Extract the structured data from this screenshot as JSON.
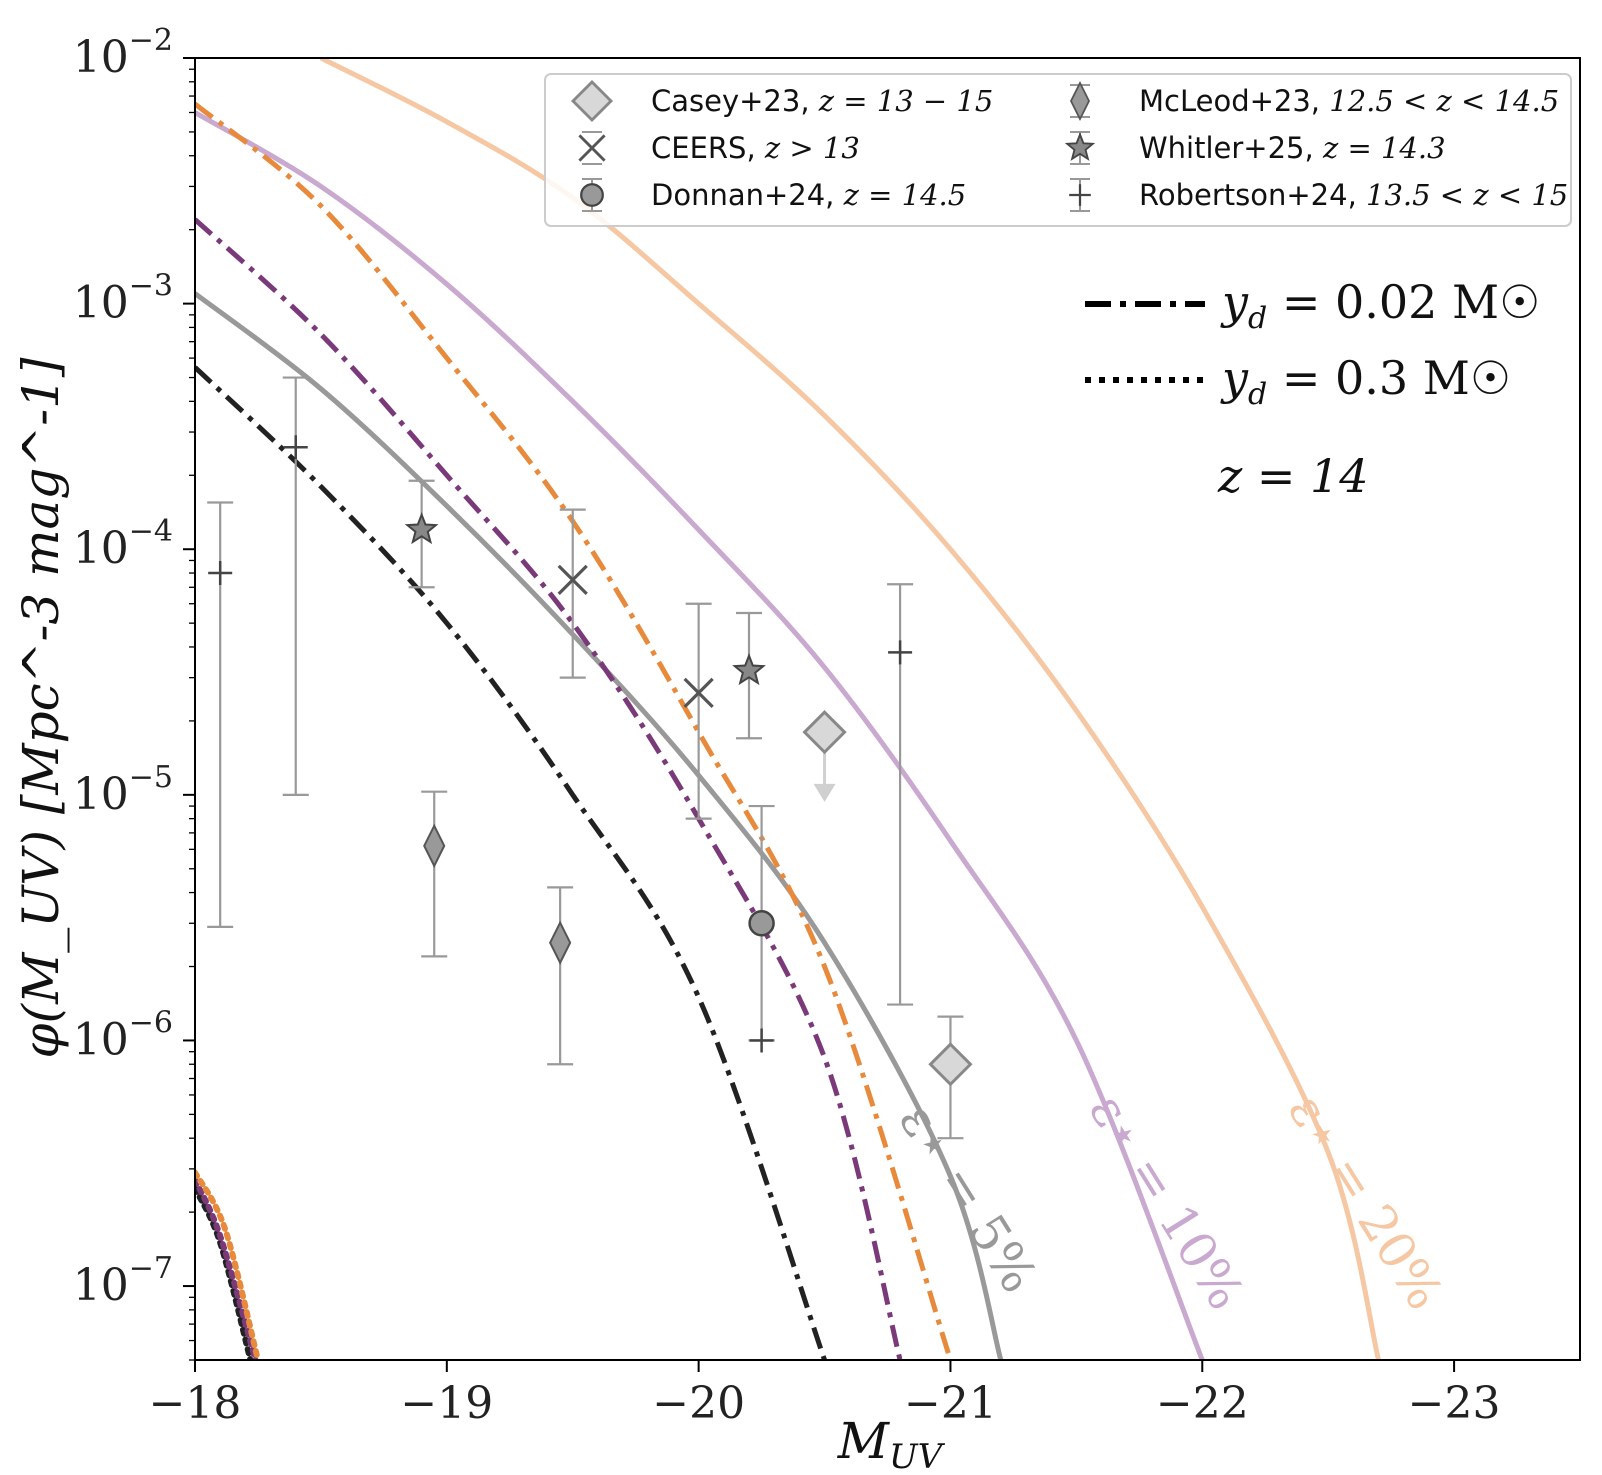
{
  "chart_data": {
    "type": "line",
    "xlabel": "M_UV",
    "ylabel": "φ(M_UV) [Mpc^-3 mag^-1]",
    "xlim": [
      -18,
      -23.5
    ],
    "ylim": [
      5e-08,
      0.01
    ],
    "yscale": "log",
    "x_ticks": [
      -18,
      -19,
      -20,
      -21,
      -22,
      -23
    ],
    "x_tick_labels": [
      "−18",
      "−19",
      "−20",
      "−21",
      "−22",
      "−23"
    ],
    "y_ticks": [
      1e-07,
      1e-06,
      1e-05,
      0.0001,
      0.001,
      0.01
    ],
    "y_tick_base": "10",
    "y_tick_exponents": [
      "−7",
      "−6",
      "−5",
      "−4",
      "−3",
      "−2"
    ],
    "grid": false,
    "legend_position": "top",
    "colors": {
      "eps5": "#999999",
      "eps10": "#c9a9cf",
      "eps20": "#f5c7a3",
      "yd002_black": "#222222",
      "yd002_purple": "#7a3a7a",
      "yd002_orange": "#e88a3c",
      "data_fill": "#888888",
      "data_edge": "#444444",
      "errorbar": "#999999"
    },
    "series": [
      {
        "name": "ε⋆ = 5%",
        "style": "solid",
        "color": "#999999",
        "x": [
          -18,
          -18.5,
          -19,
          -19.5,
          -20,
          -20.5,
          -21,
          -21.2
        ],
        "y": [
          0.0011,
          0.00045,
          0.00015,
          4.5e-05,
          1.2e-05,
          2.5e-06,
          2.8e-07,
          5e-08
        ]
      },
      {
        "name": "ε⋆ = 10%",
        "style": "solid",
        "color": "#c9a9cf",
        "x": [
          -18,
          -18.5,
          -19,
          -19.5,
          -20,
          -20.5,
          -21,
          -21.5,
          -22
        ],
        "y": [
          0.006,
          0.003,
          0.0012,
          0.0004,
          0.00012,
          3.3e-05,
          6.5e-06,
          1e-06,
          5e-08
        ]
      },
      {
        "name": "ε⋆ = 20%",
        "style": "solid",
        "color": "#f5c7a3",
        "x": [
          -18.5,
          -19,
          -19.5,
          -20,
          -20.5,
          -21,
          -21.5,
          -22,
          -22.5,
          -22.7
        ],
        "y": [
          0.01,
          0.0055,
          0.0027,
          0.001,
          0.00035,
          0.0001,
          2.2e-05,
          3.5e-06,
          3.5e-07,
          5e-08
        ]
      },
      {
        "name": "y_d = 0.02 M☉ (ε⋆ = 5%)",
        "style": "dashdot",
        "color": "#222222",
        "x": [
          -18,
          -18.5,
          -19,
          -19.5,
          -20,
          -20.5
        ],
        "y": [
          0.00055,
          0.00018,
          5e-05,
          1e-05,
          1.5e-06,
          5e-08
        ]
      },
      {
        "name": "y_d = 0.02 M☉ (ε⋆ = 10%)",
        "style": "dashdot",
        "color": "#7a3a7a",
        "x": [
          -18,
          -18.5,
          -19,
          -19.5,
          -20,
          -20.5,
          -20.8
        ],
        "y": [
          0.0022,
          0.00075,
          0.0002,
          5e-05,
          8e-06,
          8.5e-07,
          5e-08
        ]
      },
      {
        "name": "y_d = 0.02 M☉ (ε⋆ = 20%)",
        "style": "dashdot",
        "color": "#e88a3c",
        "x": [
          -18,
          -18.5,
          -19,
          -19.5,
          -20,
          -20.5,
          -21
        ],
        "y": [
          0.0065,
          0.0025,
          0.0006,
          0.00013,
          1.8e-05,
          2e-06,
          5e-08
        ]
      },
      {
        "name": "y_d = 0.3 M☉ (ε⋆ = 5%)",
        "style": "dotted",
        "color": "#222222",
        "x": [
          -18,
          -18.1,
          -18.22
        ],
        "y": [
          2.5e-07,
          1.5e-07,
          5e-08
        ]
      },
      {
        "name": "y_d = 0.3 M☉ (ε⋆ = 10%)",
        "style": "dotted",
        "color": "#7a3a7a",
        "x": [
          -18,
          -18.1,
          -18.24
        ],
        "y": [
          2.7e-07,
          1.6e-07,
          5e-08
        ]
      },
      {
        "name": "y_d = 0.3 M☉ (ε⋆ = 20%)",
        "style": "dotted",
        "color": "#e88a3c",
        "x": [
          -18,
          -18.12,
          -18.25
        ],
        "y": [
          2.9e-07,
          1.7e-07,
          5e-08
        ]
      }
    ],
    "datasets": [
      {
        "name": "Casey+23",
        "label_math": "z = 13 − 15",
        "marker": "diamond-large",
        "points": [
          {
            "x": -20.5,
            "y": 1.8e-05,
            "upper_limit": true
          },
          {
            "x": -21,
            "y": 8e-07,
            "yerr_low": 4e-07,
            "yerr_high": 1.25e-06
          }
        ]
      },
      {
        "name": "CEERS",
        "label_math": "z > 13",
        "marker": "x",
        "points": [
          {
            "x": -19.5,
            "y": 7.5e-05,
            "yerr_low": 3e-05,
            "yerr_high": 0.000145
          },
          {
            "x": -20,
            "y": 2.6e-05,
            "yerr_low": 8e-06,
            "yerr_high": 6e-05
          }
        ]
      },
      {
        "name": "Donnan+24",
        "label_math": "z = 14.5",
        "marker": "circle",
        "points": [
          {
            "x": -20.25,
            "y": 3e-06,
            "yerr_low": 1e-06,
            "yerr_high": 9e-06
          }
        ]
      },
      {
        "name": "McLeod+23",
        "label_math": "12.5 < z < 14.5",
        "marker": "thin-diamond",
        "points": [
          {
            "x": -18.95,
            "y": 6.2e-06,
            "yerr_low": 2.2e-06,
            "yerr_high": 1.03e-05
          },
          {
            "x": -19.45,
            "y": 2.5e-06,
            "yerr_low": 8e-07,
            "yerr_high": 4.2e-06
          }
        ]
      },
      {
        "name": "Whitler+25",
        "label_math": "z = 14.3",
        "marker": "star",
        "points": [
          {
            "x": -18.9,
            "y": 0.00012,
            "yerr_low": 7e-05,
            "yerr_high": 0.00019
          },
          {
            "x": -20.2,
            "y": 3.2e-05,
            "yerr_low": 1.7e-05,
            "yerr_high": 5.5e-05
          }
        ]
      },
      {
        "name": "Robertson+24",
        "label_math": "13.5 < z < 15",
        "marker": "plus",
        "points": [
          {
            "x": -18.1,
            "y": 8e-05,
            "yerr_low": 2.9e-06,
            "yerr_high": 0.000155
          },
          {
            "x": -18.4,
            "y": 0.00026,
            "yerr_low": 1e-05,
            "yerr_high": 0.0005
          },
          {
            "x": -20.25,
            "y": 1e-06,
            "yerr_low": 1e-06,
            "yerr_high": 1e-06
          },
          {
            "x": -20.8,
            "y": 3.8e-05,
            "yerr_low": 1.4e-06,
            "yerr_high": 7.2e-05
          }
        ]
      }
    ],
    "legend": [
      {
        "name": "Casey+23,",
        "math": "z = 13 − 15",
        "marker": "diamond-large"
      },
      {
        "name": "CEERS,",
        "math": "z > 13",
        "marker": "x"
      },
      {
        "name": "Donnan+24,",
        "math": "z = 14.5",
        "marker": "circle"
      },
      {
        "name": "McLeod+23,",
        "math": "12.5 < z < 14.5",
        "marker": "thin-diamond"
      },
      {
        "name": "Whitler+25,",
        "math": "z = 14.3",
        "marker": "star"
      },
      {
        "name": "Robertson+24,",
        "math": "13.5 < z < 15",
        "marker": "plus"
      }
    ],
    "line_style_legend": [
      {
        "label_prefix": "y",
        "label_sub": "d",
        "label_rest": " = 0.02 M☉",
        "style": "dashdot"
      },
      {
        "label_prefix": "y",
        "label_sub": "d",
        "label_rest": " = 0.3 M☉",
        "style": "dotted"
      }
    ],
    "annotations": {
      "redshift": "z = 14",
      "eps5": "ε⋆ = 5%",
      "eps10": "ε⋆ = 10%",
      "eps20": "ε⋆ = 20%"
    }
  }
}
